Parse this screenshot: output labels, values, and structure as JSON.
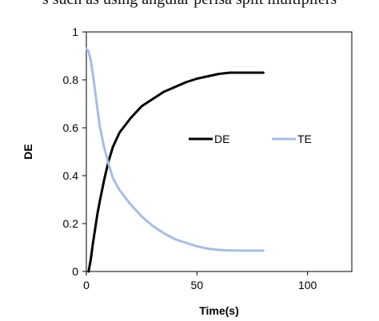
{
  "header_fragment": "s such as using angular perisa split multipliers",
  "chart_data": {
    "type": "line",
    "title": "",
    "xlabel": "Time(s)",
    "ylabel": "DE",
    "xlim": [
      0,
      120
    ],
    "ylim": [
      0,
      1
    ],
    "x_ticks": [
      "0",
      "50",
      "100"
    ],
    "y_ticks": [
      "0",
      "0.2",
      "0.4",
      "0.6",
      "0.8",
      "1"
    ],
    "grid": false,
    "legend_position": "right-center",
    "series": [
      {
        "name": "DE",
        "color": "#000000",
        "x": [
          1,
          2,
          3,
          4,
          5,
          6,
          8,
          10,
          12,
          15,
          20,
          25,
          30,
          35,
          40,
          45,
          50,
          55,
          60,
          65,
          70,
          75,
          80
        ],
        "y": [
          0.0,
          0.05,
          0.12,
          0.18,
          0.24,
          0.29,
          0.38,
          0.46,
          0.52,
          0.58,
          0.64,
          0.69,
          0.72,
          0.75,
          0.77,
          0.79,
          0.805,
          0.815,
          0.825,
          0.83,
          0.83,
          0.83,
          0.83
        ]
      },
      {
        "name": "TE",
        "color": "#a8bde0",
        "x": [
          0,
          1,
          2,
          3,
          4,
          5,
          6,
          8,
          10,
          12,
          15,
          20,
          25,
          30,
          35,
          40,
          45,
          50,
          55,
          60,
          65,
          70,
          75,
          80
        ],
        "y": [
          0.93,
          0.92,
          0.88,
          0.82,
          0.75,
          0.68,
          0.61,
          0.52,
          0.45,
          0.39,
          0.34,
          0.28,
          0.23,
          0.19,
          0.16,
          0.135,
          0.12,
          0.105,
          0.095,
          0.09,
          0.088,
          0.087,
          0.087,
          0.087
        ]
      }
    ]
  }
}
